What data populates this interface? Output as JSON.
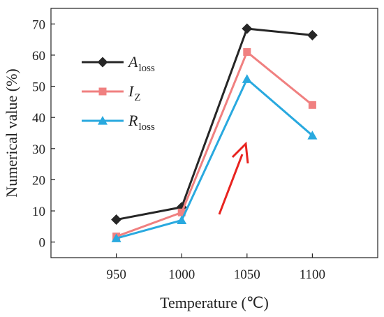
{
  "chart_data": {
    "type": "line",
    "xlabel": "Temperature (℃)",
    "ylabel": "Numerical value (%)",
    "x": [
      950,
      1000,
      1050,
      1100
    ],
    "xlim": [
      900,
      1150
    ],
    "ylim": [
      -5,
      75
    ],
    "yticks": [
      0,
      10,
      20,
      30,
      40,
      50,
      60,
      70
    ],
    "grid": false,
    "legend_position": "top-left",
    "annotation": "red upward arrow",
    "series": [
      {
        "main": "A",
        "sub": "loss",
        "color": "#262626",
        "marker": "diamond",
        "values": [
          7.2,
          11.2,
          68.5,
          66.4
        ]
      },
      {
        "main": "I",
        "sub": "Z",
        "color": "#f08080",
        "marker": "square",
        "values": [
          1.8,
          9.5,
          61.0,
          44.0
        ]
      },
      {
        "main": "R",
        "sub": "loss",
        "color": "#29a9df",
        "marker": "triangle",
        "values": [
          1.2,
          7.0,
          52.3,
          34.2
        ]
      }
    ]
  }
}
